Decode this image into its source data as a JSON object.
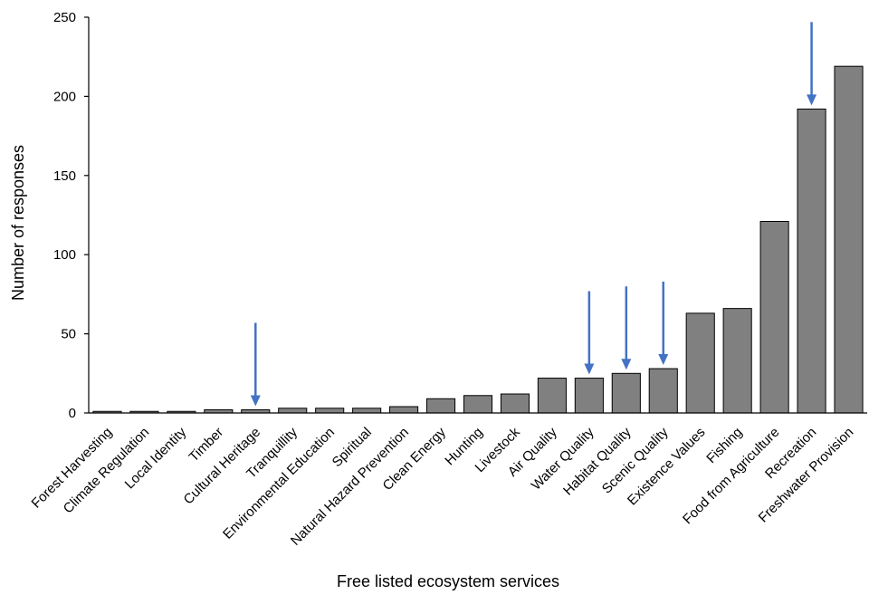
{
  "colors": {
    "bar_fill": "#808080",
    "bar_stroke": "#000000",
    "axis": "#000000",
    "arrow": "#4472C4"
  },
  "chart_data": {
    "type": "bar",
    "title": "",
    "xlabel": "Free listed ecosystem services",
    "ylabel": "Number of responses",
    "ylim": [
      0,
      250
    ],
    "yticks": [
      0,
      50,
      100,
      150,
      200,
      250
    ],
    "grid": false,
    "legend": "none",
    "categories": [
      "Forest Harvesting",
      "Climate Regulation",
      "Local Identity",
      "Timber",
      "Cultural Heritage",
      "Tranquillity",
      "Environmental Education",
      "Spiritual",
      "Natural Hazard Prevention",
      "Clean Energy",
      "Hunting",
      "Livestock",
      "Air Quality",
      "Water Quality",
      "Habitat Quality",
      "Scenic Quality",
      "Existence Values",
      "Fishing",
      "Food from Agriculture",
      "Recreation",
      "Freshwater Provision"
    ],
    "values": [
      1,
      1,
      1,
      2,
      2,
      3,
      3,
      3,
      4,
      9,
      11,
      12,
      22,
      22,
      25,
      28,
      63,
      66,
      121,
      192,
      219
    ],
    "arrow_markers": [
      "Cultural Heritage",
      "Water Quality",
      "Habitat Quality",
      "Scenic Quality",
      "Recreation"
    ]
  }
}
